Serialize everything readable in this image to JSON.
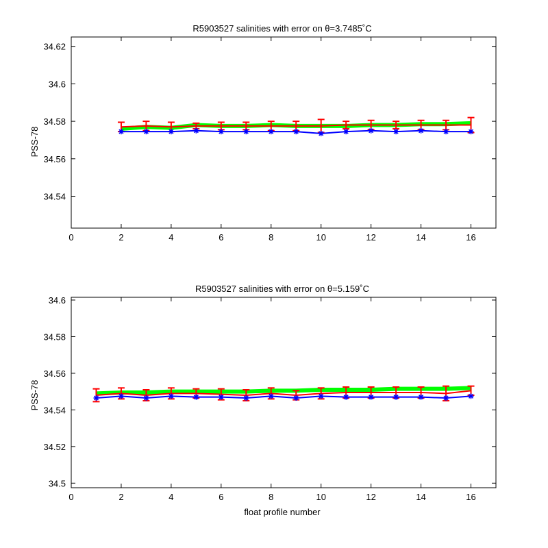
{
  "chart_data": [
    {
      "type": "line",
      "title": "R5903527 salinities with error on θ=3.7485˚C",
      "xlabel": "",
      "ylabel": "PSS-78",
      "xlim": [
        0,
        17
      ],
      "ylim": [
        34.523,
        34.625
      ],
      "xticks": [
        0,
        2,
        4,
        6,
        8,
        10,
        12,
        14,
        16
      ],
      "yticks": [
        34.54,
        34.56,
        34.58,
        34.6,
        34.62
      ],
      "x": [
        2,
        3,
        4,
        5,
        6,
        7,
        8,
        9,
        10,
        11,
        12,
        13,
        14,
        15,
        16
      ],
      "series": [
        {
          "color": "#00ff00",
          "values": [
            34.576,
            34.577,
            34.5765,
            34.578,
            34.5775,
            34.5775,
            34.578,
            34.5775,
            34.5775,
            34.5775,
            34.578,
            34.578,
            34.5785,
            34.5785,
            34.579
          ]
        },
        {
          "color": "#ff0000",
          "values": [
            34.577,
            34.5775,
            34.577,
            34.5775,
            34.5775,
            34.5775,
            34.5775,
            34.5775,
            34.5775,
            34.578,
            34.578,
            34.578,
            34.578,
            34.578,
            34.578
          ],
          "error": [
            0.0025,
            0.0025,
            0.0025,
            0.0015,
            0.002,
            0.002,
            0.0025,
            0.0025,
            0.0035,
            0.002,
            0.0025,
            0.002,
            0.0025,
            0.0025,
            0.004
          ]
        },
        {
          "color": "#0000ff",
          "values": [
            34.5745,
            34.5745,
            34.5745,
            34.575,
            34.5745,
            34.5745,
            34.5745,
            34.5745,
            34.5735,
            34.5745,
            34.575,
            34.5745,
            34.575,
            34.5745,
            34.5745
          ]
        }
      ]
    },
    {
      "type": "line",
      "title": "R5903527 salinities with error on θ=5.159˚C",
      "xlabel": "float profile number",
      "ylabel": "PSS-78",
      "xlim": [
        0,
        17
      ],
      "ylim": [
        34.4975,
        34.6015
      ],
      "xticks": [
        0,
        2,
        4,
        6,
        8,
        10,
        12,
        14,
        16
      ],
      "yticks": [
        34.5,
        34.52,
        34.54,
        34.56,
        34.58,
        34.6
      ],
      "x": [
        1,
        2,
        3,
        4,
        5,
        6,
        7,
        8,
        9,
        10,
        11,
        12,
        13,
        14,
        15,
        16
      ],
      "series": [
        {
          "color": "#00ff00",
          "values": [
            34.549,
            34.5495,
            34.5495,
            34.55,
            34.55,
            34.55,
            34.55,
            34.5505,
            34.5505,
            34.551,
            34.551,
            34.551,
            34.5515,
            34.5515,
            34.5515,
            34.552
          ]
        },
        {
          "color": "#ff0000",
          "values": [
            34.548,
            34.549,
            34.548,
            34.549,
            34.549,
            34.5485,
            34.548,
            34.549,
            34.548,
            34.549,
            34.5495,
            34.5495,
            34.5495,
            34.5495,
            34.549,
            34.5505
          ],
          "error": [
            0.0035,
            0.003,
            0.003,
            0.003,
            0.0025,
            0.003,
            0.003,
            0.003,
            0.0025,
            0.003,
            0.003,
            0.003,
            0.003,
            0.003,
            0.004,
            0.0025
          ]
        },
        {
          "color": "#0000ff",
          "values": [
            34.5465,
            34.5475,
            34.5465,
            34.5475,
            34.547,
            34.547,
            34.5465,
            34.5475,
            34.5465,
            34.5475,
            34.547,
            34.547,
            34.547,
            34.547,
            34.5465,
            34.5475
          ]
        }
      ]
    }
  ]
}
